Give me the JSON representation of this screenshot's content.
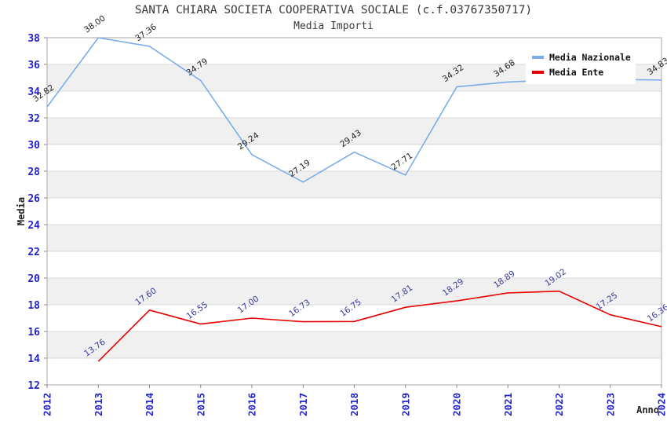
{
  "chart_data": {
    "type": "line",
    "title": "SANTA CHIARA SOCIETA COOPERATIVA SOCIALE (c.f.03767350717)",
    "subtitle": "Media Importi",
    "xlabel": "Anno",
    "ylabel": "Media",
    "x": [
      2012,
      2013,
      2014,
      2015,
      2016,
      2017,
      2018,
      2019,
      2020,
      2021,
      2022,
      2023,
      2024
    ],
    "ylim": [
      12,
      38
    ],
    "ytick_step": 2,
    "grid": "horizontal",
    "legend_position": "top-right",
    "band_colors": [
      "#ffffff",
      "#f0f0f0"
    ],
    "axis_tick_color": "#2424cc",
    "series": [
      {
        "name": "Media Nazionale",
        "color": "#7cace8",
        "label_color": "#1f1f1f",
        "values": [
          32.82,
          38.0,
          37.36,
          34.79,
          29.24,
          27.19,
          29.43,
          27.71,
          34.32,
          34.68,
          34.85,
          34.88,
          34.83
        ],
        "labels": [
          "32.82",
          "38.00",
          "37.36",
          "34.79",
          "29.24",
          "27.19",
          "29.43",
          "27.71",
          "34.32",
          "34.68",
          null,
          null,
          "34.83"
        ]
      },
      {
        "name": "Media Ente",
        "color": "#e60000",
        "label_color": "#3a3a9e",
        "values": [
          null,
          13.76,
          17.6,
          16.55,
          17.0,
          16.73,
          16.75,
          17.81,
          18.29,
          18.89,
          19.02,
          17.25,
          16.36
        ],
        "labels": [
          null,
          "13.76",
          "17.60",
          "16.55",
          "17.00",
          "16.73",
          "16.75",
          "17.81",
          "18.29",
          "18.89",
          "19.02",
          "17.25",
          "16.36"
        ]
      }
    ]
  }
}
